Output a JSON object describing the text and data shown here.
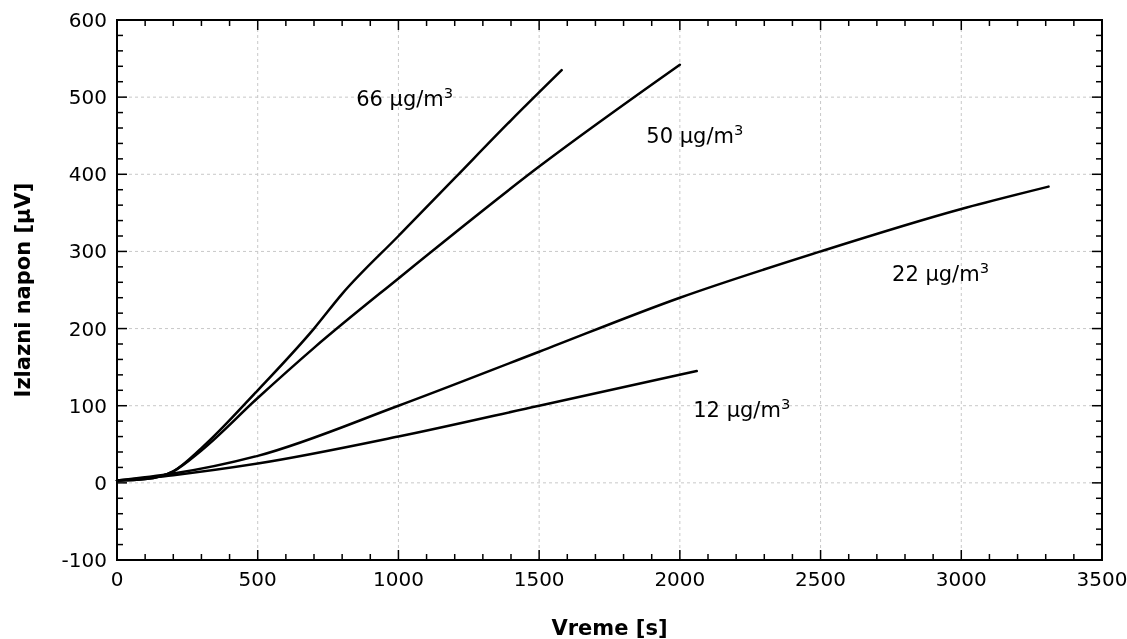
{
  "chart_data": {
    "type": "line",
    "xlabel": "Vreme [s]",
    "ylabel": "Izlazni napon [µV]",
    "xlim": [
      0,
      3500
    ],
    "xticks": [
      0,
      500,
      1000,
      1500,
      2000,
      2500,
      3000,
      3500
    ],
    "ylim": [
      -100,
      600
    ],
    "yticks": [
      -100,
      0,
      100,
      200,
      300,
      400,
      500,
      600
    ],
    "grid": true,
    "line_style": "solid",
    "marker": "none",
    "series": [
      {
        "name": "66 µg/m$^{3}$",
        "color": "#000000",
        "x": [
          0,
          100,
          200,
          300,
          500,
          700,
          800,
          1000,
          1200,
          1400,
          1580
        ],
        "values": [
          3,
          5,
          15,
          45,
          120,
          200,
          245,
          320,
          395,
          470,
          535
        ]
      },
      {
        "name": "50 µg/m$^{3}$",
        "color": "#000000",
        "x": [
          0,
          100,
          200,
          300,
          500,
          700,
          1000,
          1500,
          2000
        ],
        "values": [
          3,
          5,
          15,
          42,
          110,
          175,
          265,
          410,
          542
        ]
      },
      {
        "name": "22 µg/m$^{3}$",
        "color": "#000000",
        "x": [
          0,
          200,
          500,
          1000,
          1500,
          2000,
          2500,
          3000,
          3310
        ],
        "values": [
          3,
          12,
          35,
          100,
          170,
          240,
          300,
          355,
          384
        ]
      },
      {
        "name": "12 µg/m$^{3}$",
        "color": "#000000",
        "x": [
          0,
          200,
          500,
          1000,
          1500,
          2060
        ],
        "values": [
          3,
          10,
          25,
          60,
          100,
          145
        ]
      }
    ]
  }
}
